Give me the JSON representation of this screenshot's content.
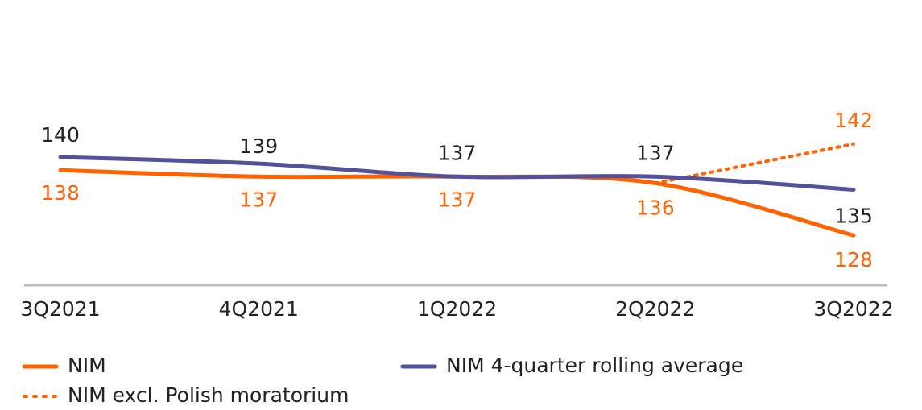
{
  "chart_data": {
    "type": "line",
    "categories": [
      "3Q2021",
      "4Q2021",
      "1Q2022",
      "2Q2022",
      "3Q2022"
    ],
    "series": [
      {
        "name": "NIM",
        "color": "#ff6200",
        "values": [
          138,
          137,
          137,
          136,
          128
        ]
      },
      {
        "name": "NIM 4-quarter rolling average",
        "color": "#525199",
        "values": [
          140,
          139,
          137,
          137,
          135
        ]
      },
      {
        "name": "NIM excl. Polish moratorium",
        "color": "#ff6200",
        "style": "dotted",
        "values": [
          null,
          null,
          null,
          136,
          142
        ]
      }
    ],
    "ylim": [
      120,
      150
    ]
  }
}
